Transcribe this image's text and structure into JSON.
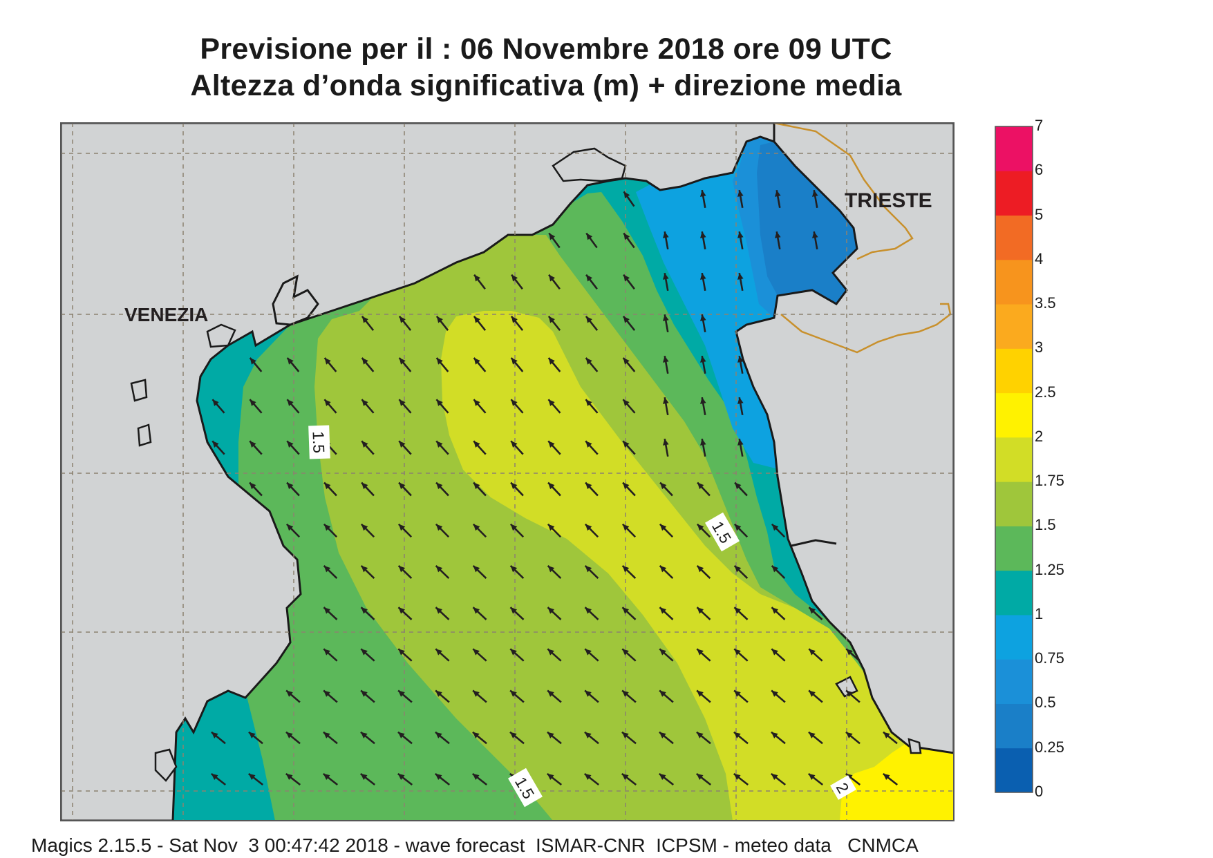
{
  "title_line1": "Previsione per il  :  06 Novembre  2018   ore 09 UTC",
  "title_line2": "Altezza d’onda significativa (m) + direzione media",
  "places": [
    {
      "name": "VENEZIA"
    },
    {
      "name": "TRIESTE"
    }
  ],
  "contour_labels": [
    "1.5",
    "1.5",
    "1.5",
    "2"
  ],
  "colorbar": {
    "ticks": [
      "0",
      "0.25",
      "0.5",
      "0.75",
      "1",
      "1.25",
      "1.5",
      "1.75",
      "2",
      "2.5",
      "3",
      "3.5",
      "4",
      "5",
      "6",
      "7"
    ],
    "colors": [
      "#0a5fb0",
      "#1a7fc8",
      "#1b90d8",
      "#0da2e0",
      "#00aaa5",
      "#5cb85a",
      "#9fc63b",
      "#d2dd26",
      "#fff200",
      "#ffd200",
      "#fbaa1e",
      "#f7941d",
      "#f26b24",
      "#ed1c24",
      "#ec1164"
    ]
  },
  "wave_direction": "from south-east (arrows pointing north-west)",
  "colors": {
    "land": "#d1d3d4",
    "coast": "#1a1a1a",
    "border": "#c8902c",
    "grid": "#8c8270"
  },
  "footer": "Magics 2.15.5 - Sat Nov  3 00:47:42 2018 - wave forecast  ISMAR-CNR  ICPSM - meteo data   CNMCA"
}
